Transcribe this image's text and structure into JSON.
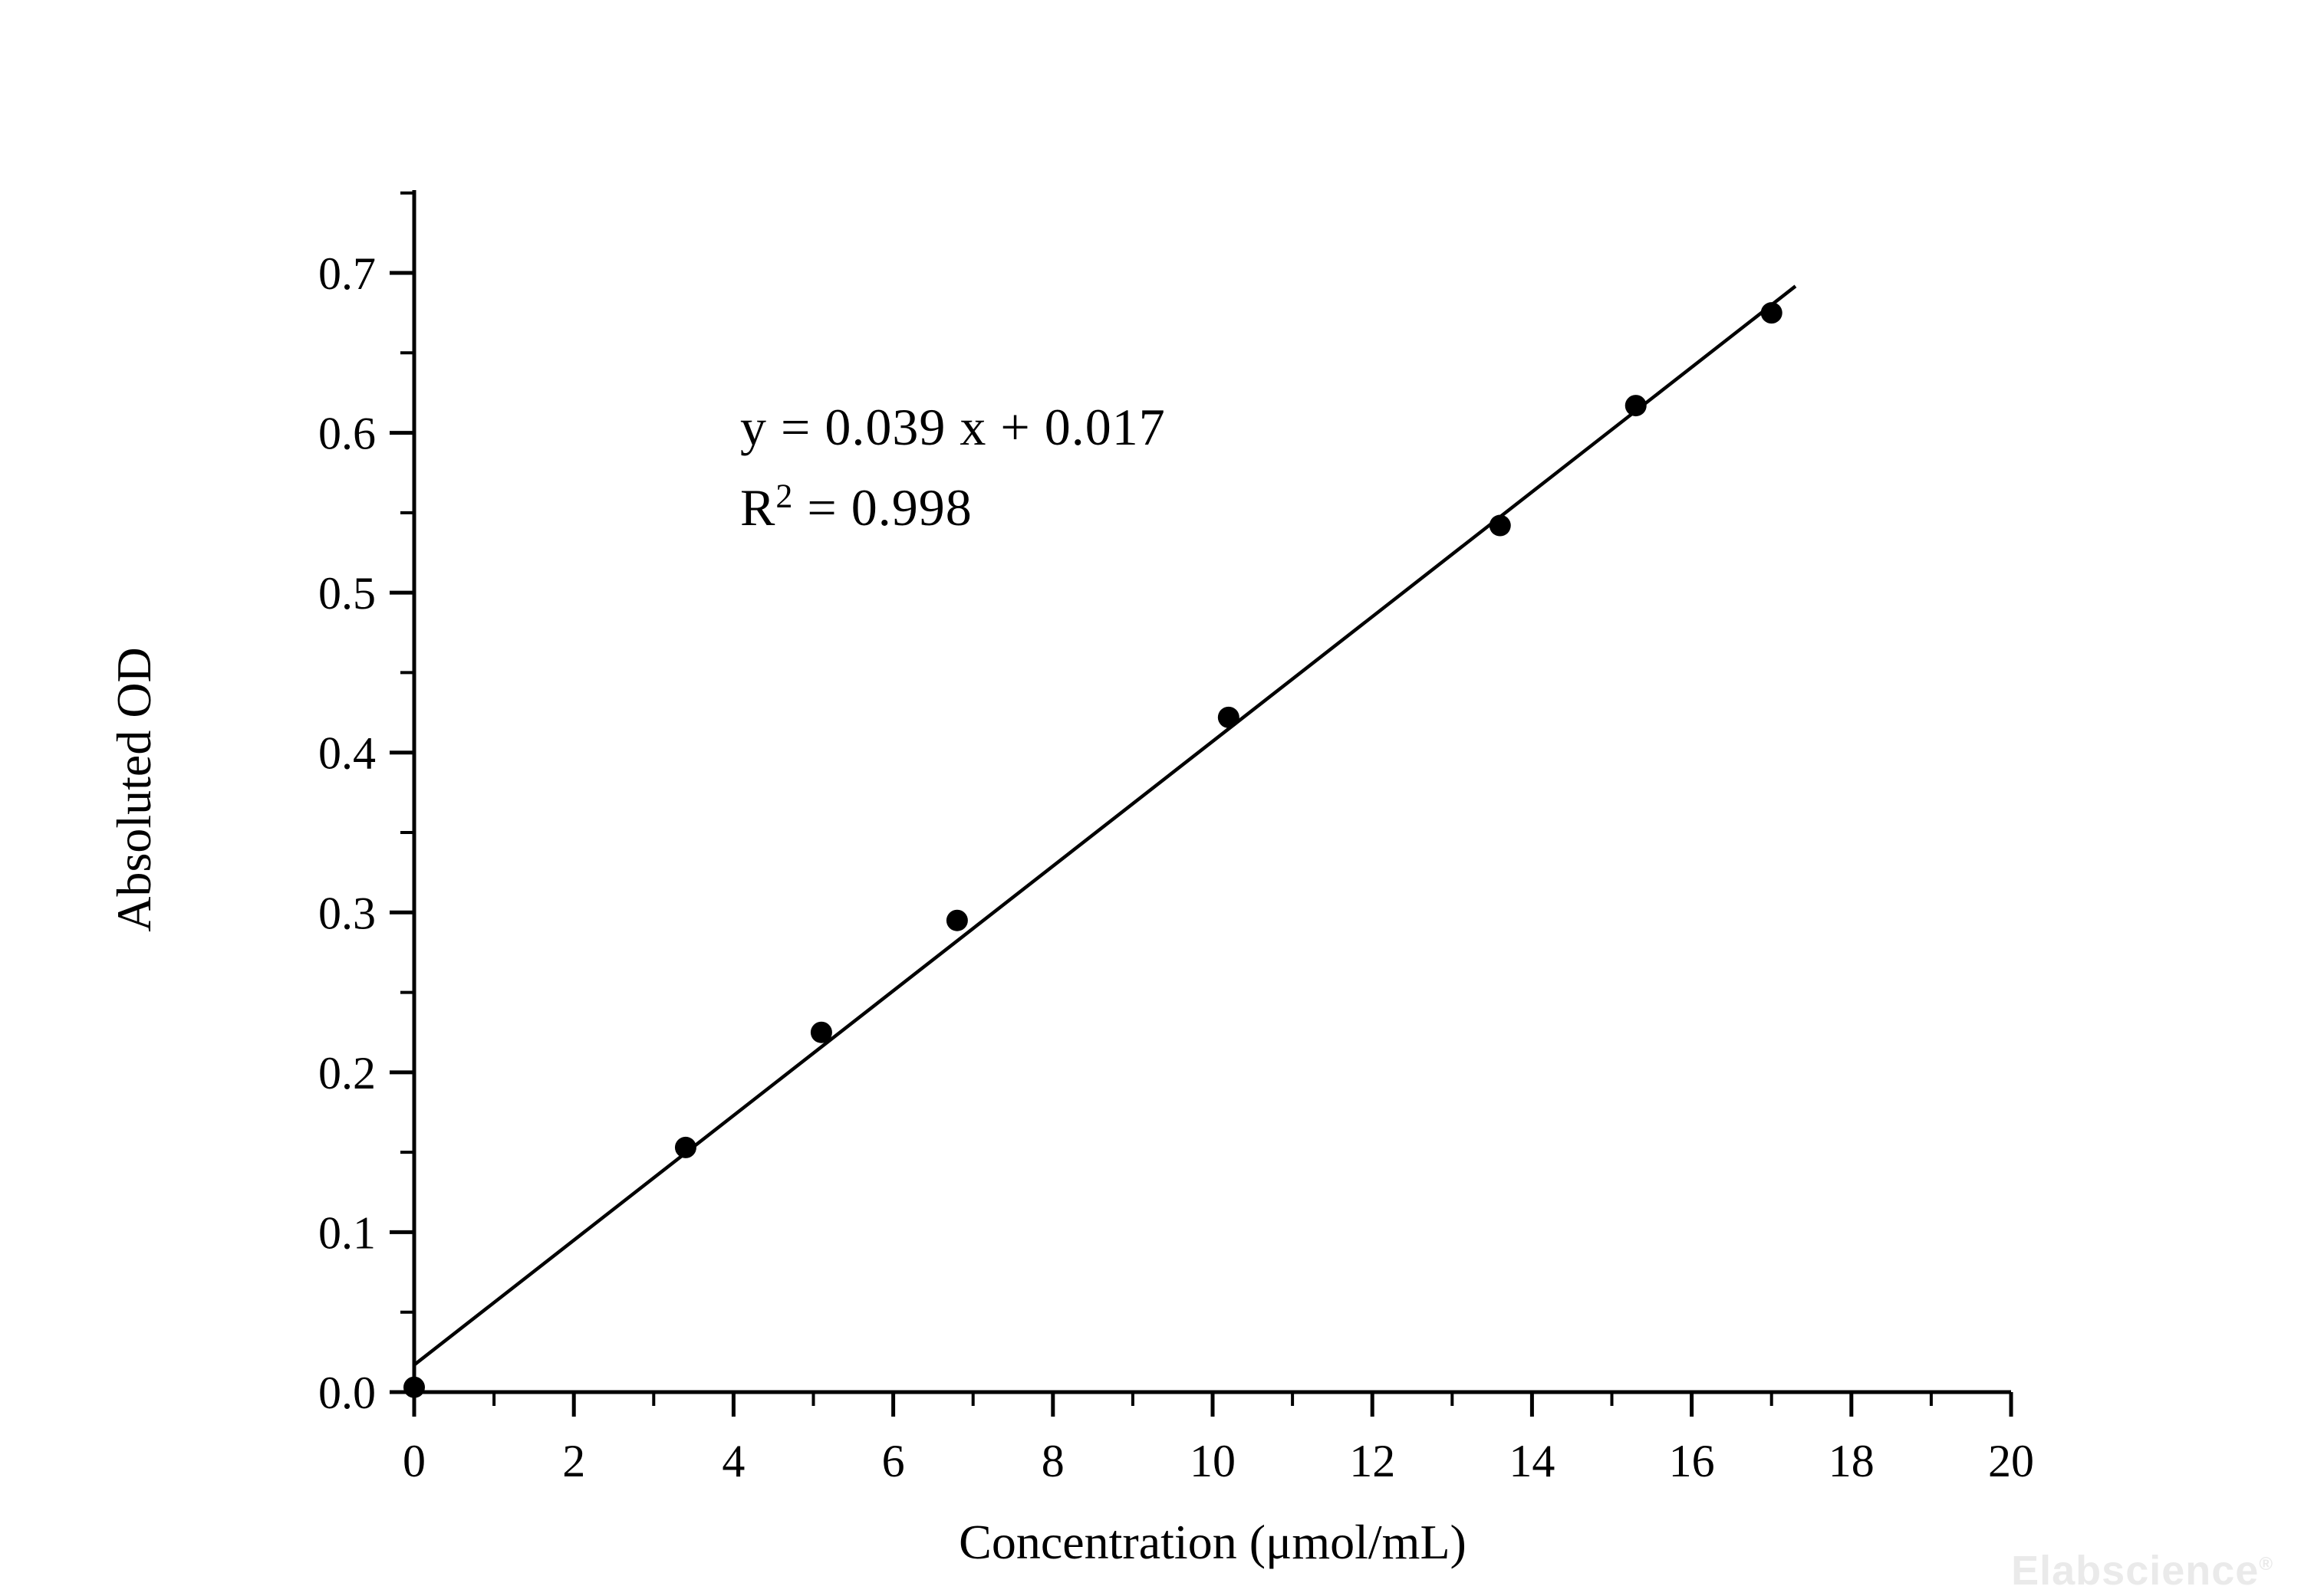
{
  "chart_data": {
    "type": "scatter",
    "title": "",
    "xlabel": "Concentration (μmol/mL)",
    "ylabel": "Absoluted OD",
    "xlim": [
      0,
      20
    ],
    "ylim": [
      0,
      0.7
    ],
    "x_major_ticks": [
      0,
      2,
      4,
      6,
      8,
      10,
      12,
      14,
      16,
      18,
      20
    ],
    "x_minor_step": 1,
    "y_major_tick_labels": [
      "0.0",
      "0.1",
      "0.2",
      "0.3",
      "0.4",
      "0.5",
      "0.6",
      "0.7"
    ],
    "y_minor_step": 0.05,
    "y_minor_max": 0.75,
    "grid": false,
    "legend": "none",
    "points": [
      {
        "x": 0.0,
        "y": 0.003
      },
      {
        "x": 3.4,
        "y": 0.153
      },
      {
        "x": 5.1,
        "y": 0.225
      },
      {
        "x": 6.8,
        "y": 0.295
      },
      {
        "x": 10.2,
        "y": 0.422
      },
      {
        "x": 13.6,
        "y": 0.542
      },
      {
        "x": 15.3,
        "y": 0.617
      },
      {
        "x": 17.0,
        "y": 0.675
      }
    ],
    "fit_line": {
      "slope": 0.039,
      "intercept": 0.017,
      "x_start": 0,
      "x_end": 17.3
    },
    "annotations": {
      "equation": "y = 0.039 x + 0.017",
      "r_base": "R",
      "r_exponent": "2",
      "r_value": " = 0.998"
    },
    "colors": {
      "axis": "#000000",
      "line": "#000000",
      "points": "#000000",
      "text": "#000000"
    }
  },
  "watermark": {
    "text": "Elabscience",
    "reg": "®",
    "color": "#eaeaea"
  }
}
